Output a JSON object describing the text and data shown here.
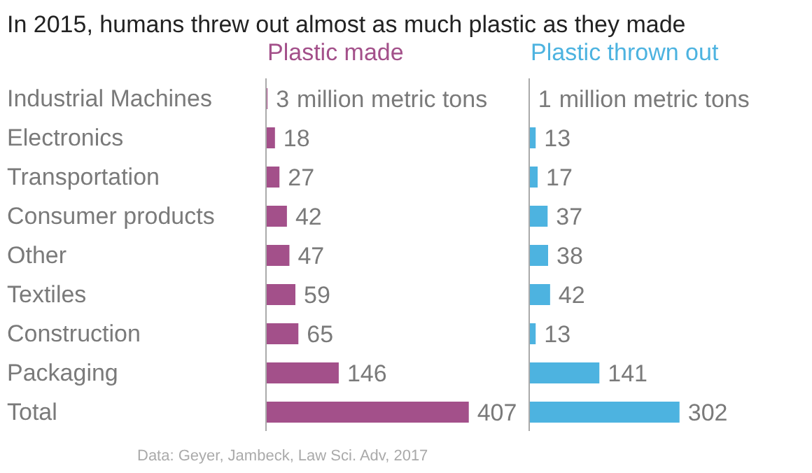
{
  "chart_data": [
    {
      "type": "bar",
      "orientation": "horizontal",
      "title": "In 2015, humans threw out almost as much plastic as they made",
      "categories": [
        "Industrial Machines",
        "Electronics",
        "Transportation",
        "Consumer products",
        "Other",
        "Textiles",
        "Construction",
        "Packaging",
        "Total"
      ],
      "series": [
        {
          "name": "Plastic made",
          "color": "#a3508a",
          "values": [
            3,
            18,
            27,
            42,
            47,
            59,
            65,
            146,
            407
          ]
        }
      ],
      "data_labels": true,
      "tick_labels": "y",
      "legend": false,
      "grid": false,
      "annotations": [
        {
          "text": "million metric tons",
          "x": 3,
          "y": "Industrial Machines"
        },
        "Data: Geyer, Jambeck, Law Sci. Adv, 2017"
      ]
    },
    {
      "type": "bar",
      "orientation": "horizontal",
      "categories": [
        "Industrial Machines",
        "Electronics",
        "Transportation",
        "Consumer products",
        "Other",
        "Textiles",
        "Construction",
        "Packaging",
        "Total"
      ],
      "series": [
        {
          "name": "Plastic thrown out",
          "color": "#4db3e0",
          "values": [
            1,
            13,
            17,
            37,
            38,
            42,
            13,
            141,
            302
          ]
        }
      ],
      "data_labels": true,
      "tick_labels": false,
      "legend": false,
      "grid": false,
      "annotations": [
        {
          "text": "million metric tons",
          "x": 1,
          "y": "Industrial Machines"
        }
      ]
    }
  ]
}
